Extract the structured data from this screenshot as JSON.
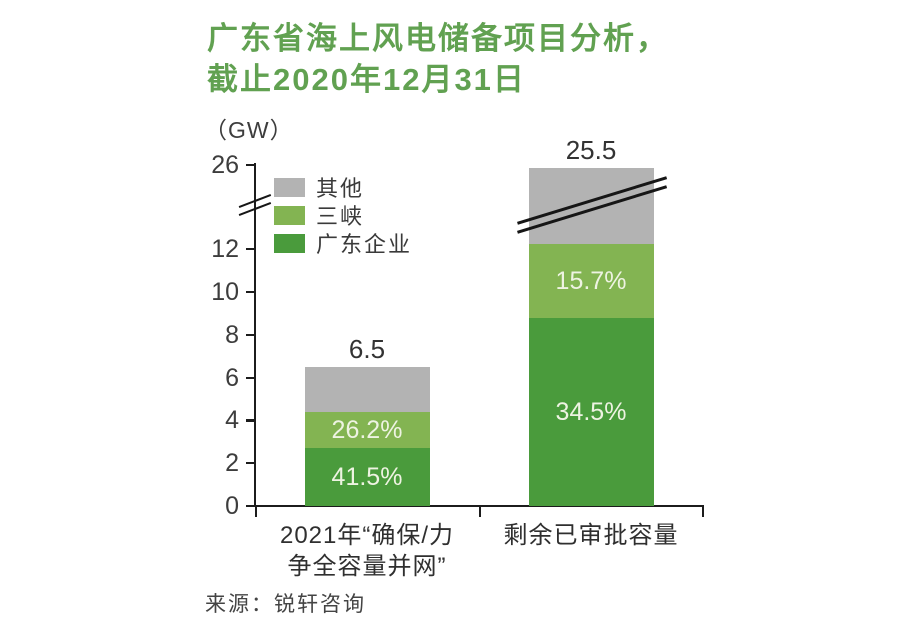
{
  "page": {
    "background": "#ffffff"
  },
  "title": {
    "lines": [
      "广东省海上风电储备项目分析，",
      "截止2020年12月31日"
    ]
  },
  "unit_label": "（GW）",
  "colors": {
    "gray": "#b3b3b3",
    "light_green": "#83b452",
    "dark_green": "#4a9b3c",
    "title_green": "#61a151",
    "axis": "#1c1c1c"
  },
  "legend": {
    "items": [
      {
        "label": "其他",
        "color_key": "gray"
      },
      {
        "label": "三峡",
        "color_key": "light_green"
      },
      {
        "label": "广东企业",
        "color_key": "dark_green"
      }
    ]
  },
  "source": "来源：锐轩咨询",
  "chart_data": {
    "type": "bar",
    "subtype": "stacked-bar-with-axis-break",
    "title": "广东省海上风电储备项目分析，截止2020年12月31日",
    "unit": "GW",
    "categories": [
      {
        "lines": [
          "2021年“确保/力",
          "争全容量并网”"
        ]
      },
      {
        "lines": [
          "剩余已审批容量"
        ]
      }
    ],
    "totals": [
      6.5,
      25.5
    ],
    "total_labels": [
      "6.5",
      "25.5"
    ],
    "series": [
      {
        "name": "广东企业",
        "color_key": "dark_green",
        "values_gw": [
          2.7,
          8.8
        ],
        "percent_labels": [
          "41.5%",
          "34.5%"
        ]
      },
      {
        "name": "三峡",
        "color_key": "light_green",
        "values_gw": [
          1.7,
          4.0
        ],
        "percent_labels": [
          "26.2%",
          "15.7%"
        ]
      },
      {
        "name": "其他",
        "color_key": "gray",
        "values_gw": [
          2.1,
          12.7
        ],
        "percent_labels": [
          "",
          ""
        ]
      }
    ],
    "y_ticks": [
      0,
      2,
      4,
      6,
      8,
      10,
      12,
      26
    ],
    "axis_break": true,
    "axis_break_between": [
      12,
      26
    ],
    "grid": false,
    "legend_position": "upper-left-inside",
    "ylim_display": [
      0,
      26
    ]
  }
}
